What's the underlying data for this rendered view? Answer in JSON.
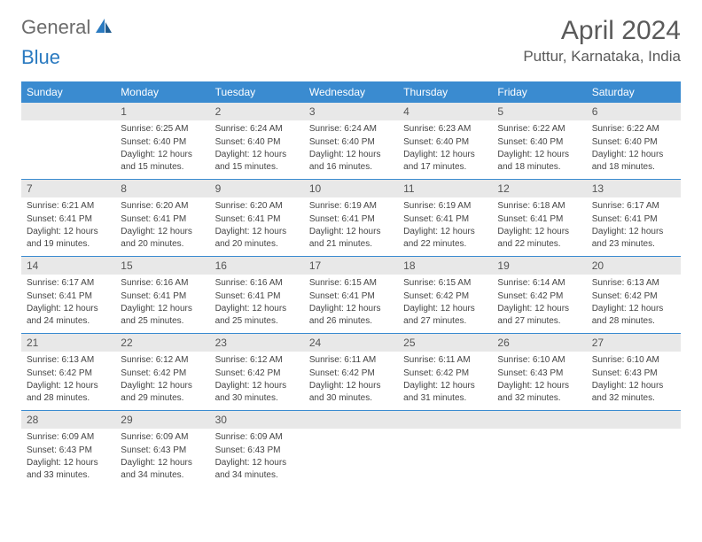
{
  "brand": {
    "part1": "General",
    "part2": "Blue"
  },
  "title": "April 2024",
  "location": "Puttur, Karnataka, India",
  "colors": {
    "header_bg": "#3a8bd0",
    "header_text": "#ffffff",
    "daynum_bg": "#e8e8e8",
    "border": "#3a8bd0",
    "title_color": "#5a5a5a",
    "brand_gray": "#6b6b6b",
    "brand_blue": "#2a7ac0"
  },
  "columns": [
    "Sunday",
    "Monday",
    "Tuesday",
    "Wednesday",
    "Thursday",
    "Friday",
    "Saturday"
  ],
  "weeks": [
    [
      null,
      {
        "d": "1",
        "sr": "Sunrise: 6:25 AM",
        "ss": "Sunset: 6:40 PM",
        "dl": "Daylight: 12 hours and 15 minutes."
      },
      {
        "d": "2",
        "sr": "Sunrise: 6:24 AM",
        "ss": "Sunset: 6:40 PM",
        "dl": "Daylight: 12 hours and 15 minutes."
      },
      {
        "d": "3",
        "sr": "Sunrise: 6:24 AM",
        "ss": "Sunset: 6:40 PM",
        "dl": "Daylight: 12 hours and 16 minutes."
      },
      {
        "d": "4",
        "sr": "Sunrise: 6:23 AM",
        "ss": "Sunset: 6:40 PM",
        "dl": "Daylight: 12 hours and 17 minutes."
      },
      {
        "d": "5",
        "sr": "Sunrise: 6:22 AM",
        "ss": "Sunset: 6:40 PM",
        "dl": "Daylight: 12 hours and 18 minutes."
      },
      {
        "d": "6",
        "sr": "Sunrise: 6:22 AM",
        "ss": "Sunset: 6:40 PM",
        "dl": "Daylight: 12 hours and 18 minutes."
      }
    ],
    [
      {
        "d": "7",
        "sr": "Sunrise: 6:21 AM",
        "ss": "Sunset: 6:41 PM",
        "dl": "Daylight: 12 hours and 19 minutes."
      },
      {
        "d": "8",
        "sr": "Sunrise: 6:20 AM",
        "ss": "Sunset: 6:41 PM",
        "dl": "Daylight: 12 hours and 20 minutes."
      },
      {
        "d": "9",
        "sr": "Sunrise: 6:20 AM",
        "ss": "Sunset: 6:41 PM",
        "dl": "Daylight: 12 hours and 20 minutes."
      },
      {
        "d": "10",
        "sr": "Sunrise: 6:19 AM",
        "ss": "Sunset: 6:41 PM",
        "dl": "Daylight: 12 hours and 21 minutes."
      },
      {
        "d": "11",
        "sr": "Sunrise: 6:19 AM",
        "ss": "Sunset: 6:41 PM",
        "dl": "Daylight: 12 hours and 22 minutes."
      },
      {
        "d": "12",
        "sr": "Sunrise: 6:18 AM",
        "ss": "Sunset: 6:41 PM",
        "dl": "Daylight: 12 hours and 22 minutes."
      },
      {
        "d": "13",
        "sr": "Sunrise: 6:17 AM",
        "ss": "Sunset: 6:41 PM",
        "dl": "Daylight: 12 hours and 23 minutes."
      }
    ],
    [
      {
        "d": "14",
        "sr": "Sunrise: 6:17 AM",
        "ss": "Sunset: 6:41 PM",
        "dl": "Daylight: 12 hours and 24 minutes."
      },
      {
        "d": "15",
        "sr": "Sunrise: 6:16 AM",
        "ss": "Sunset: 6:41 PM",
        "dl": "Daylight: 12 hours and 25 minutes."
      },
      {
        "d": "16",
        "sr": "Sunrise: 6:16 AM",
        "ss": "Sunset: 6:41 PM",
        "dl": "Daylight: 12 hours and 25 minutes."
      },
      {
        "d": "17",
        "sr": "Sunrise: 6:15 AM",
        "ss": "Sunset: 6:41 PM",
        "dl": "Daylight: 12 hours and 26 minutes."
      },
      {
        "d": "18",
        "sr": "Sunrise: 6:15 AM",
        "ss": "Sunset: 6:42 PM",
        "dl": "Daylight: 12 hours and 27 minutes."
      },
      {
        "d": "19",
        "sr": "Sunrise: 6:14 AM",
        "ss": "Sunset: 6:42 PM",
        "dl": "Daylight: 12 hours and 27 minutes."
      },
      {
        "d": "20",
        "sr": "Sunrise: 6:13 AM",
        "ss": "Sunset: 6:42 PM",
        "dl": "Daylight: 12 hours and 28 minutes."
      }
    ],
    [
      {
        "d": "21",
        "sr": "Sunrise: 6:13 AM",
        "ss": "Sunset: 6:42 PM",
        "dl": "Daylight: 12 hours and 28 minutes."
      },
      {
        "d": "22",
        "sr": "Sunrise: 6:12 AM",
        "ss": "Sunset: 6:42 PM",
        "dl": "Daylight: 12 hours and 29 minutes."
      },
      {
        "d": "23",
        "sr": "Sunrise: 6:12 AM",
        "ss": "Sunset: 6:42 PM",
        "dl": "Daylight: 12 hours and 30 minutes."
      },
      {
        "d": "24",
        "sr": "Sunrise: 6:11 AM",
        "ss": "Sunset: 6:42 PM",
        "dl": "Daylight: 12 hours and 30 minutes."
      },
      {
        "d": "25",
        "sr": "Sunrise: 6:11 AM",
        "ss": "Sunset: 6:42 PM",
        "dl": "Daylight: 12 hours and 31 minutes."
      },
      {
        "d": "26",
        "sr": "Sunrise: 6:10 AM",
        "ss": "Sunset: 6:43 PM",
        "dl": "Daylight: 12 hours and 32 minutes."
      },
      {
        "d": "27",
        "sr": "Sunrise: 6:10 AM",
        "ss": "Sunset: 6:43 PM",
        "dl": "Daylight: 12 hours and 32 minutes."
      }
    ],
    [
      {
        "d": "28",
        "sr": "Sunrise: 6:09 AM",
        "ss": "Sunset: 6:43 PM",
        "dl": "Daylight: 12 hours and 33 minutes."
      },
      {
        "d": "29",
        "sr": "Sunrise: 6:09 AM",
        "ss": "Sunset: 6:43 PM",
        "dl": "Daylight: 12 hours and 34 minutes."
      },
      {
        "d": "30",
        "sr": "Sunrise: 6:09 AM",
        "ss": "Sunset: 6:43 PM",
        "dl": "Daylight: 12 hours and 34 minutes."
      },
      null,
      null,
      null,
      null
    ]
  ]
}
